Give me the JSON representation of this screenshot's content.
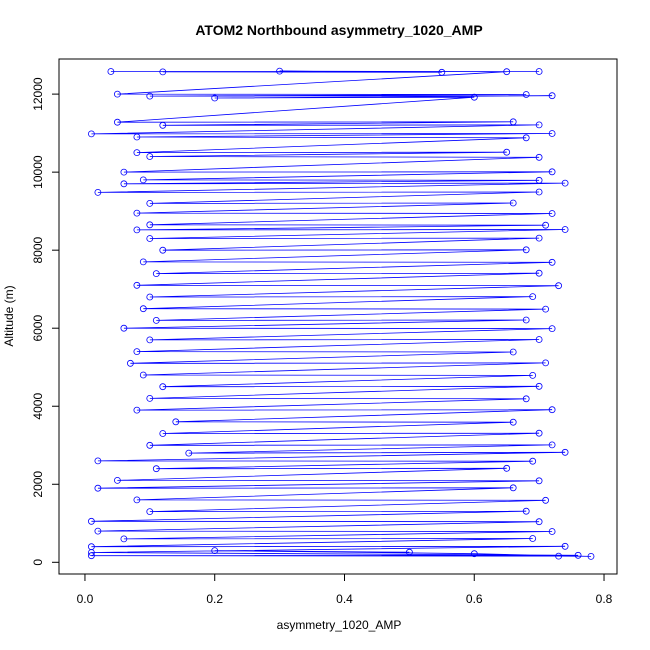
{
  "chart_data": {
    "type": "line",
    "title": "ATOM2 Northbound asymmetry_1020_AMP",
    "xlabel": "asymmetry_1020_AMP",
    "ylabel": "Altitude (m)",
    "xlim": [
      -0.04,
      0.82
    ],
    "ylim": [
      -300,
      12900
    ],
    "x_ticks": [
      0.0,
      0.2,
      0.4,
      0.6,
      0.8
    ],
    "x_tick_labels": [
      "0.0",
      "0.2",
      "0.4",
      "0.6",
      "0.8"
    ],
    "y_ticks": [
      0,
      2000,
      4000,
      6000,
      8000,
      10000,
      12000
    ],
    "y_tick_labels": [
      "0",
      "2000",
      "4000",
      "6000",
      "8000",
      "10000",
      "12000"
    ],
    "grid": false,
    "legend": "none",
    "series": [
      {
        "color": "#0000ff",
        "marker": "open-circle",
        "points": [
          [
            0.04,
            12580
          ],
          [
            0.7,
            12580
          ],
          [
            0.12,
            12570
          ],
          [
            0.55,
            12560
          ],
          [
            0.3,
            12590
          ],
          [
            0.65,
            12575
          ],
          [
            0.05,
            12000
          ],
          [
            0.68,
            11990
          ],
          [
            0.1,
            11950
          ],
          [
            0.72,
            11960
          ],
          [
            0.2,
            11900
          ],
          [
            0.6,
            11920
          ],
          [
            0.05,
            11280
          ],
          [
            0.66,
            11290
          ],
          [
            0.12,
            11200
          ],
          [
            0.7,
            11210
          ],
          [
            0.01,
            10980
          ],
          [
            0.72,
            10990
          ],
          [
            0.08,
            10900
          ],
          [
            0.68,
            10880
          ],
          [
            0.08,
            10500
          ],
          [
            0.65,
            10510
          ],
          [
            0.1,
            10400
          ],
          [
            0.7,
            10380
          ],
          [
            0.06,
            10000
          ],
          [
            0.72,
            10010
          ],
          [
            0.09,
            9800
          ],
          [
            0.7,
            9790
          ],
          [
            0.06,
            9700
          ],
          [
            0.74,
            9720
          ],
          [
            0.02,
            9480
          ],
          [
            0.7,
            9490
          ],
          [
            0.1,
            9200
          ],
          [
            0.66,
            9210
          ],
          [
            0.08,
            8950
          ],
          [
            0.72,
            8940
          ],
          [
            0.1,
            8650
          ],
          [
            0.71,
            8640
          ],
          [
            0.08,
            8520
          ],
          [
            0.74,
            8530
          ],
          [
            0.1,
            8300
          ],
          [
            0.7,
            8310
          ],
          [
            0.12,
            8000
          ],
          [
            0.68,
            8010
          ],
          [
            0.09,
            7700
          ],
          [
            0.72,
            7690
          ],
          [
            0.11,
            7400
          ],
          [
            0.7,
            7410
          ],
          [
            0.08,
            7100
          ],
          [
            0.73,
            7090
          ],
          [
            0.1,
            6800
          ],
          [
            0.69,
            6810
          ],
          [
            0.09,
            6500
          ],
          [
            0.71,
            6490
          ],
          [
            0.11,
            6200
          ],
          [
            0.68,
            6210
          ],
          [
            0.06,
            6000
          ],
          [
            0.72,
            5990
          ],
          [
            0.1,
            5700
          ],
          [
            0.7,
            5710
          ],
          [
            0.08,
            5400
          ],
          [
            0.66,
            5390
          ],
          [
            0.07,
            5100
          ],
          [
            0.71,
            5110
          ],
          [
            0.09,
            4800
          ],
          [
            0.69,
            4790
          ],
          [
            0.12,
            4500
          ],
          [
            0.7,
            4510
          ],
          [
            0.1,
            4200
          ],
          [
            0.68,
            4190
          ],
          [
            0.08,
            3900
          ],
          [
            0.72,
            3910
          ],
          [
            0.14,
            3600
          ],
          [
            0.66,
            3590
          ],
          [
            0.12,
            3300
          ],
          [
            0.7,
            3310
          ],
          [
            0.1,
            3000
          ],
          [
            0.72,
            3010
          ],
          [
            0.16,
            2800
          ],
          [
            0.74,
            2820
          ],
          [
            0.02,
            2600
          ],
          [
            0.69,
            2590
          ],
          [
            0.11,
            2400
          ],
          [
            0.65,
            2410
          ],
          [
            0.05,
            2100
          ],
          [
            0.7,
            2090
          ],
          [
            0.02,
            1900
          ],
          [
            0.66,
            1910
          ],
          [
            0.08,
            1600
          ],
          [
            0.71,
            1590
          ],
          [
            0.1,
            1300
          ],
          [
            0.68,
            1310
          ],
          [
            0.01,
            1050
          ],
          [
            0.7,
            1040
          ],
          [
            0.02,
            800
          ],
          [
            0.72,
            790
          ],
          [
            0.06,
            600
          ],
          [
            0.69,
            610
          ],
          [
            0.01,
            400
          ],
          [
            0.74,
            410
          ],
          [
            0.01,
            250
          ],
          [
            0.76,
            180
          ],
          [
            0.01,
            170
          ],
          [
            0.73,
            160
          ],
          [
            0.78,
            150
          ],
          [
            0.6,
            220
          ],
          [
            0.2,
            300
          ],
          [
            0.5,
            260
          ]
        ]
      }
    ]
  }
}
